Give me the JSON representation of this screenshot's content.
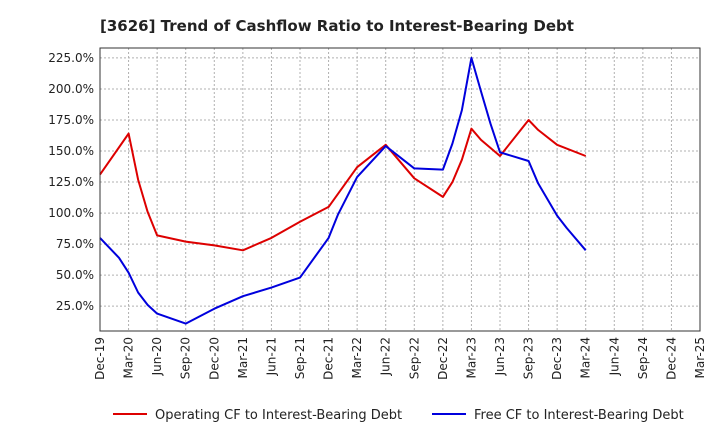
{
  "chart_data": {
    "type": "line",
    "title": "[3626]  Trend of Cashflow Ratio to Interest-Bearing Debt",
    "x_tick_labels": [
      "Dec-19",
      "Mar-20",
      "Jun-20",
      "Sep-20",
      "Dec-20",
      "Mar-21",
      "Jun-21",
      "Sep-21",
      "Dec-21",
      "Mar-22",
      "Jun-22",
      "Sep-22",
      "Dec-22",
      "Mar-23",
      "Jun-23",
      "Sep-23",
      "Dec-23",
      "Mar-24",
      "Jun-24",
      "Sep-24",
      "Dec-24",
      "Mar-25"
    ],
    "y_tick_labels": [
      "25.0%",
      "50.0%",
      "75.0%",
      "100.0%",
      "125.0%",
      "150.0%",
      "175.0%",
      "200.0%",
      "225.0%"
    ],
    "y_tick_values": [
      25,
      50,
      75,
      100,
      125,
      150,
      175,
      200,
      225
    ],
    "ylim": [
      5,
      233
    ],
    "xlim_months": [
      0,
      63
    ],
    "grid": true,
    "legend_position": "bottom",
    "series": [
      {
        "name": "Operating CF to Interest-Bearing Debt",
        "color": "#dd0000",
        "points": [
          [
            0,
            131
          ],
          [
            3,
            164
          ],
          [
            4,
            127
          ],
          [
            5,
            101
          ],
          [
            6,
            82
          ],
          [
            9,
            77
          ],
          [
            12,
            74
          ],
          [
            15,
            70
          ],
          [
            18,
            80
          ],
          [
            21,
            93
          ],
          [
            24,
            105
          ],
          [
            27,
            137
          ],
          [
            30,
            155
          ],
          [
            33,
            128
          ],
          [
            36,
            113
          ],
          [
            37,
            125
          ],
          [
            38,
            143
          ],
          [
            39,
            168
          ],
          [
            40,
            159
          ],
          [
            42,
            146
          ],
          [
            45,
            175
          ],
          [
            46,
            167
          ],
          [
            48,
            155
          ],
          [
            51,
            146
          ]
        ]
      },
      {
        "name": "Free CF to Interest-Bearing Debt",
        "color": "#0000dd",
        "points": [
          [
            0,
            80
          ],
          [
            2,
            64
          ],
          [
            3,
            52
          ],
          [
            4,
            36
          ],
          [
            5,
            26
          ],
          [
            6,
            19
          ],
          [
            9,
            11
          ],
          [
            12,
            23
          ],
          [
            15,
            33
          ],
          [
            18,
            40
          ],
          [
            21,
            48
          ],
          [
            24,
            80
          ],
          [
            25,
            99
          ],
          [
            27,
            129
          ],
          [
            30,
            154
          ],
          [
            33,
            136
          ],
          [
            36,
            135
          ],
          [
            37,
            156
          ],
          [
            38,
            183
          ],
          [
            39,
            225
          ],
          [
            40,
            198
          ],
          [
            41,
            172
          ],
          [
            42,
            149
          ],
          [
            45,
            142
          ],
          [
            46,
            124
          ],
          [
            48,
            98
          ],
          [
            49,
            88
          ],
          [
            51,
            70
          ]
        ]
      }
    ]
  }
}
